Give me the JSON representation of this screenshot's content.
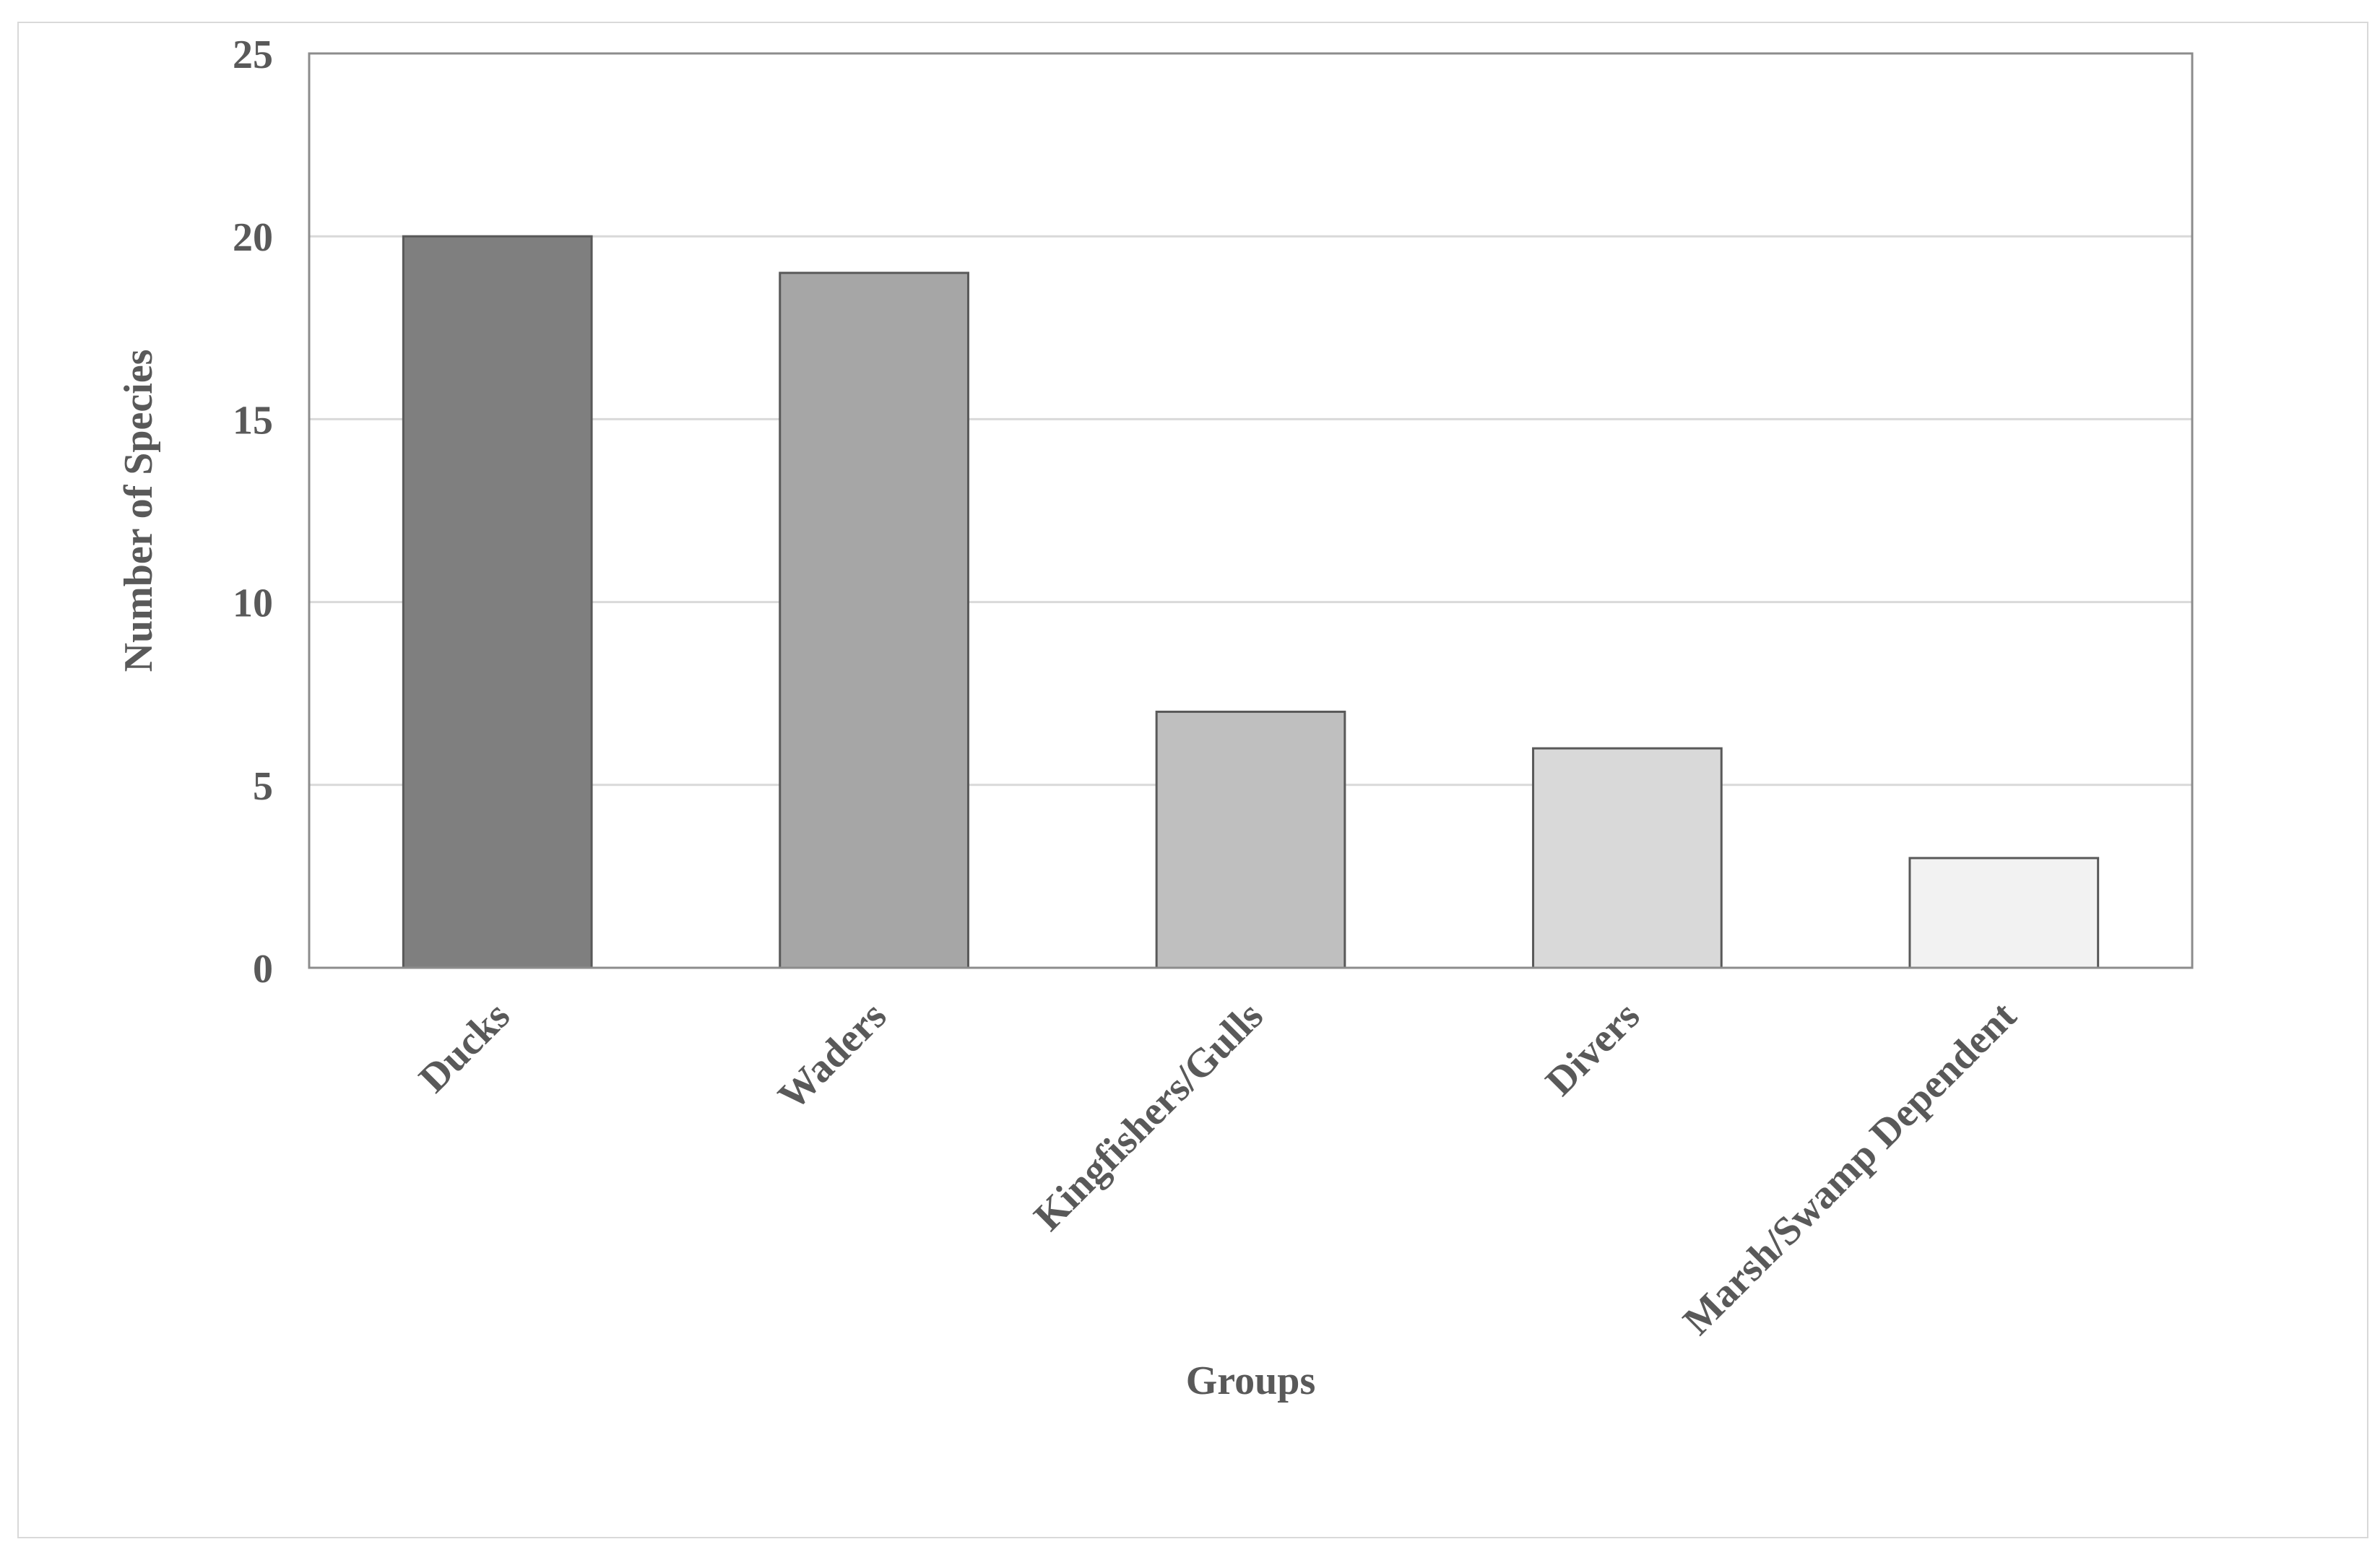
{
  "chart_data": {
    "type": "bar",
    "categories": [
      "Ducks",
      "Waders",
      "Kingfishers/Gulls",
      "Divers",
      "Marsh/Swamp Dependent"
    ],
    "values": [
      20,
      19,
      7,
      6,
      3
    ],
    "title": "",
    "xlabel": "Groups",
    "ylabel": "Number of Species",
    "ylim": [
      0,
      25
    ],
    "yticks": [
      0,
      5,
      10,
      15,
      20,
      25
    ],
    "grid": true,
    "legend": "none",
    "bar_colors": [
      "#7f7f7f",
      "#a6a6a6",
      "#bfbfbf",
      "#d9d9d9",
      "#f2f2f2"
    ],
    "bar_edge_color": "#595959",
    "gridline_color": "#d9d9d9",
    "text_color": "#595959"
  }
}
